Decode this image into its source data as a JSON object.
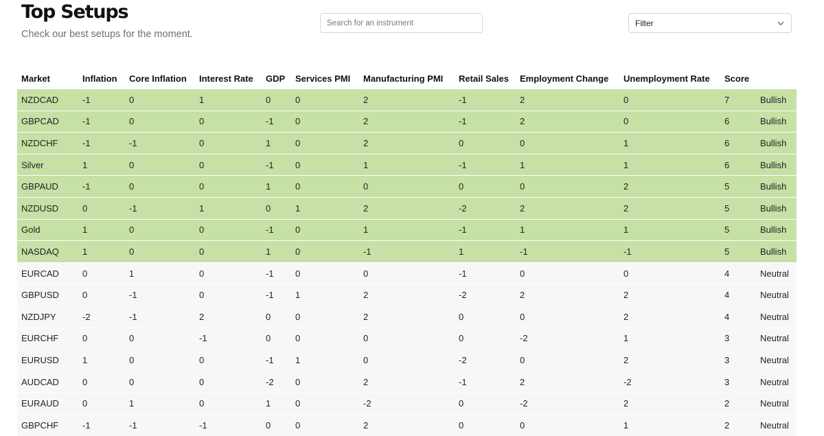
{
  "header": {
    "title": "Top Setups",
    "subtitle": "Check our best setups for the moment."
  },
  "search": {
    "placeholder": "Search for an instrument",
    "value": ""
  },
  "filter": {
    "label": "Filter",
    "icon": "chevron-down-icon"
  },
  "colors": {
    "bullish_row": "#c6e0a5",
    "neutral_row": "#f7f7f7"
  },
  "table": {
    "columns": [
      "Market",
      "Inflation",
      "Core Inflation",
      "Interest Rate",
      "GDP",
      "Services PMI",
      "Manufacturing PMI",
      "Retail Sales",
      "Employment Change",
      "Unemployment Rate",
      "Score",
      ""
    ],
    "rows": [
      [
        "NZDCAD",
        "-1",
        "0",
        "1",
        "0",
        "0",
        "2",
        "-1",
        "2",
        "0",
        "7",
        "Bullish"
      ],
      [
        "GBPCAD",
        "-1",
        "0",
        "0",
        "-1",
        "0",
        "2",
        "-1",
        "2",
        "0",
        "6",
        "Bullish"
      ],
      [
        "NZDCHF",
        "-1",
        "-1",
        "0",
        "1",
        "0",
        "2",
        "0",
        "0",
        "1",
        "6",
        "Bullish"
      ],
      [
        "Silver",
        "1",
        "0",
        "0",
        "-1",
        "0",
        "1",
        "-1",
        "1",
        "1",
        "6",
        "Bullish"
      ],
      [
        "GBPAUD",
        "-1",
        "0",
        "0",
        "1",
        "0",
        "0",
        "0",
        "0",
        "2",
        "5",
        "Bullish"
      ],
      [
        "NZDUSD",
        "0",
        "-1",
        "1",
        "0",
        "1",
        "2",
        "-2",
        "2",
        "2",
        "5",
        "Bullish"
      ],
      [
        "Gold",
        "1",
        "0",
        "0",
        "-1",
        "0",
        "1",
        "-1",
        "1",
        "1",
        "5",
        "Bullish"
      ],
      [
        "NASDAQ",
        "1",
        "0",
        "0",
        "1",
        "0",
        "-1",
        "1",
        "-1",
        "-1",
        "5",
        "Bullish"
      ],
      [
        "EURCAD",
        "0",
        "1",
        "0",
        "-1",
        "0",
        "0",
        "-1",
        "0",
        "0",
        "4",
        "Neutral"
      ],
      [
        "GBPUSD",
        "0",
        "-1",
        "0",
        "-1",
        "1",
        "2",
        "-2",
        "2",
        "2",
        "4",
        "Neutral"
      ],
      [
        "NZDJPY",
        "-2",
        "-1",
        "2",
        "0",
        "0",
        "2",
        "0",
        "0",
        "2",
        "4",
        "Neutral"
      ],
      [
        "EURCHF",
        "0",
        "0",
        "-1",
        "0",
        "0",
        "0",
        "0",
        "-2",
        "1",
        "3",
        "Neutral"
      ],
      [
        "EURUSD",
        "1",
        "0",
        "0",
        "-1",
        "1",
        "0",
        "-2",
        "0",
        "2",
        "3",
        "Neutral"
      ],
      [
        "AUDCAD",
        "0",
        "0",
        "0",
        "-2",
        "0",
        "2",
        "-1",
        "2",
        "-2",
        "3",
        "Neutral"
      ],
      [
        "EURAUD",
        "0",
        "1",
        "0",
        "1",
        "0",
        "-2",
        "0",
        "-2",
        "2",
        "2",
        "Neutral"
      ],
      [
        "GBPCHF",
        "-1",
        "-1",
        "-1",
        "0",
        "0",
        "2",
        "0",
        "0",
        "1",
        "2",
        "Neutral"
      ]
    ]
  }
}
